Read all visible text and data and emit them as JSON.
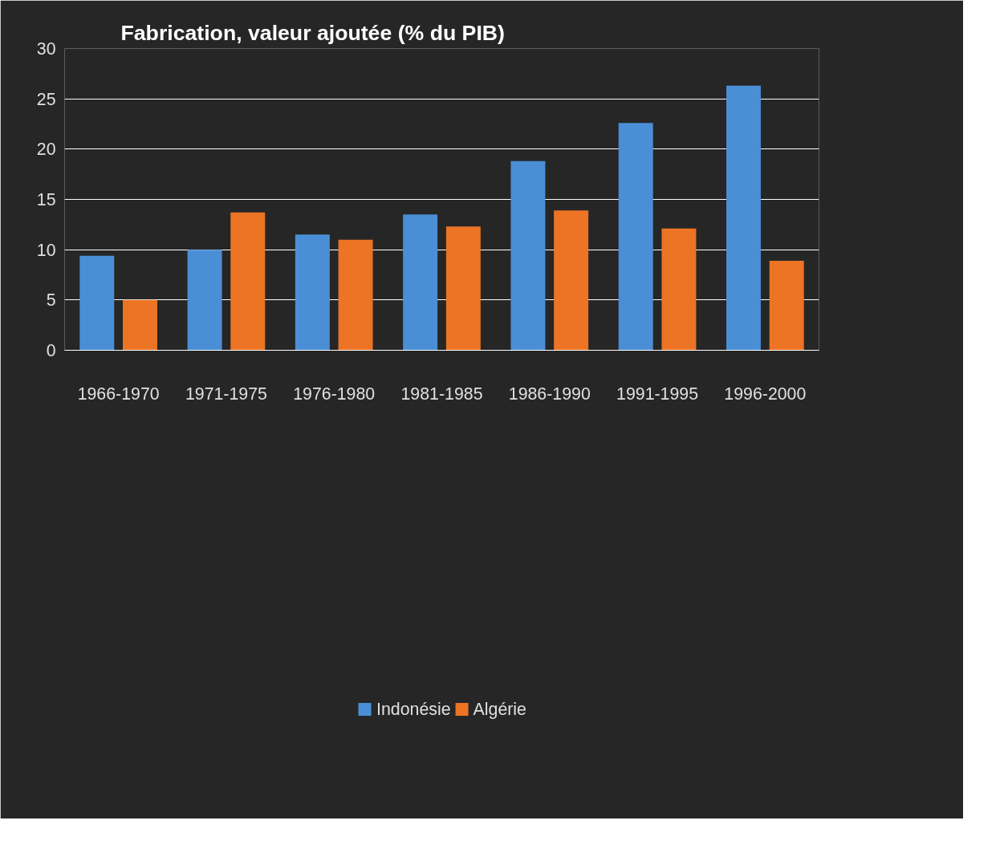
{
  "chart_data": {
    "type": "bar",
    "title": "Fabrication, valeur ajoutée (% du PIB)",
    "categories": [
      "1966-1970",
      "1971-1975",
      "1976-1980",
      "1981-1985",
      "1986-1990",
      "1991-1995",
      "1996-2000"
    ],
    "series": [
      {
        "name": "Indonésie",
        "color": "#4a8fd6",
        "values": [
          9.4,
          10.0,
          11.5,
          13.5,
          18.8,
          22.6,
          26.3
        ]
      },
      {
        "name": "Algérie",
        "color": "#ec7424",
        "values": [
          5.0,
          13.7,
          11.0,
          12.3,
          13.9,
          12.1,
          8.9
        ]
      }
    ],
    "ylim": [
      0,
      30
    ],
    "yticks": [
      0,
      5,
      10,
      15,
      20,
      25,
      30
    ],
    "grid": "y",
    "legend": "bottom"
  }
}
